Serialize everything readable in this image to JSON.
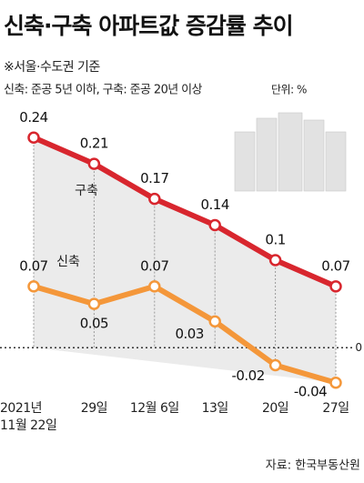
{
  "chart_data": {
    "type": "line",
    "title": "신축·구축 아파트값 증감률 추이",
    "subtitle": "※서울·수도권 기준",
    "note": "신축: 준공 5년 이하, 구축: 준공 20년 이상",
    "unit": "단위: %",
    "source": "자료: 한국부동산원",
    "categories": [
      "2021년\n11월 22일",
      "29일",
      "12월 6일",
      "13일",
      "20일",
      "27일"
    ],
    "series": [
      {
        "name": "구축",
        "color": "#d8262e",
        "values": [
          0.24,
          0.21,
          0.17,
          0.14,
          0.1,
          0.07
        ]
      },
      {
        "name": "신축",
        "color": "#f4973a",
        "values": [
          0.07,
          0.05,
          0.07,
          0.03,
          -0.02,
          -0.04
        ]
      }
    ],
    "ylim": [
      -0.06,
      0.26
    ],
    "yticks": [
      0
    ]
  }
}
